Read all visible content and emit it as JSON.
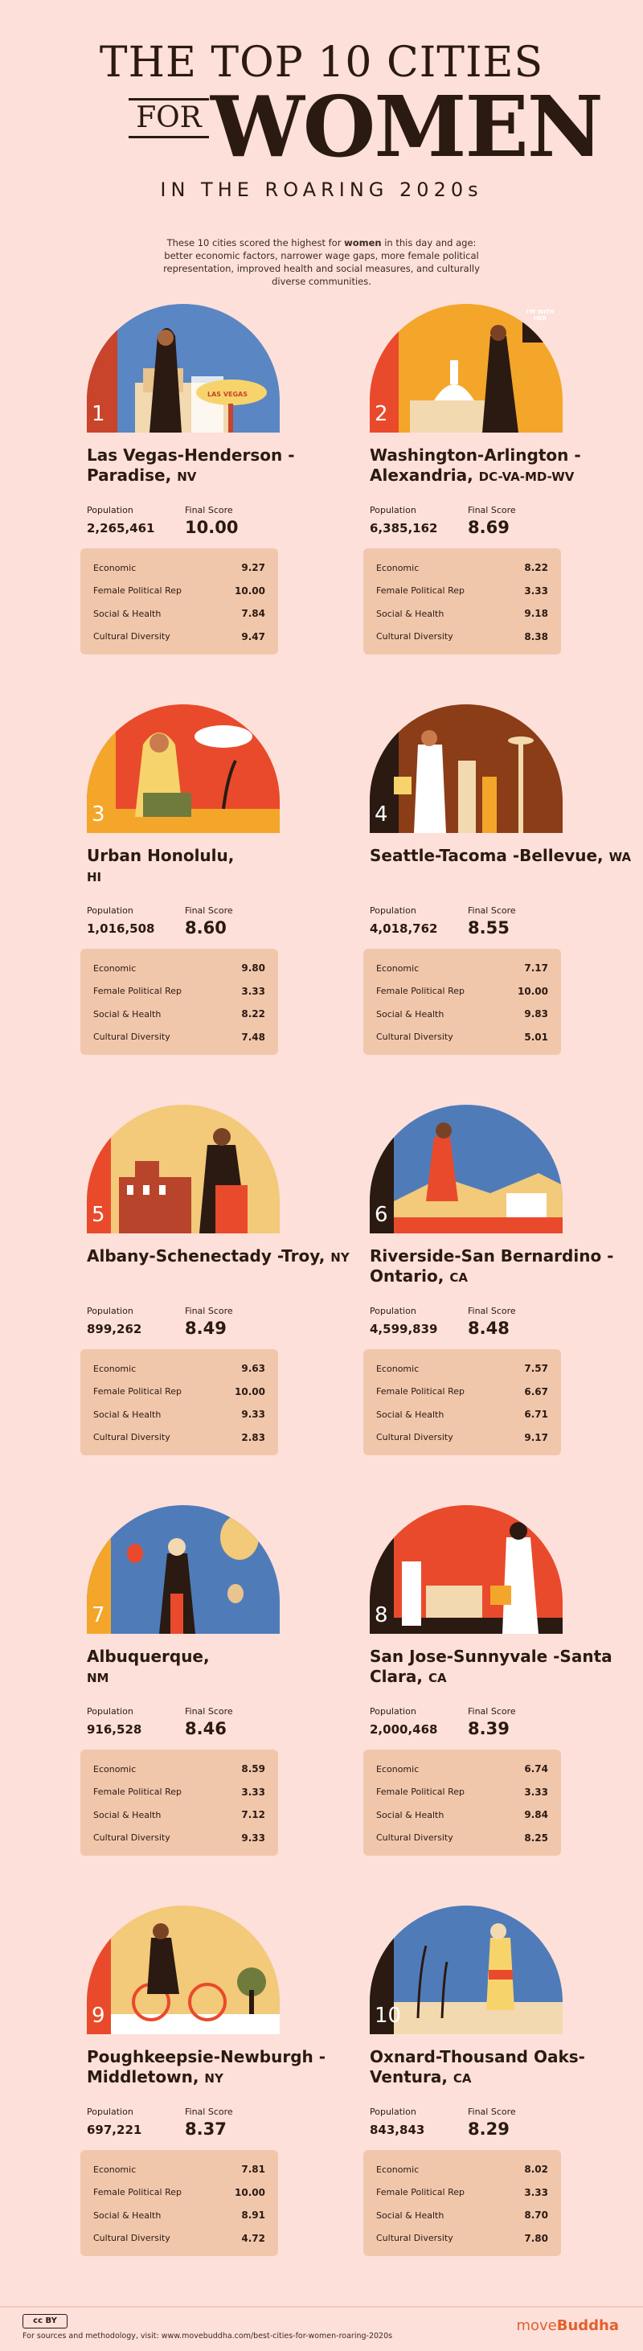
{
  "header": {
    "title_top": "THE TOP 10 CITIES",
    "title_for": "FOR",
    "title_women": "WOMEN",
    "subtitle": "IN THE ROARING 2020s",
    "intro_pre": "These 10 cities scored the highest for ",
    "intro_bold": "women",
    "intro_post": " in this day and age: better economic factors, narrower wage gaps, more female political representation, improved health and social measures, and culturally diverse communities."
  },
  "labels": {
    "population": "Population",
    "final_score": "Final Score",
    "economic": "Economic",
    "political": "Female Political Rep",
    "social": "Social & Health",
    "cultural": "Cultural Diversity"
  },
  "cities": [
    {
      "rank": "1",
      "name": "Las Vegas-Henderson -Paradise,",
      "state": "NV",
      "population": "2,265,461",
      "score": "10.00",
      "economic": "9.27",
      "political": "10.00",
      "social": "7.84",
      "cultural": "9.47",
      "sign_text": "LAS VEGAS"
    },
    {
      "rank": "2",
      "name": "Washington-Arlington -Alexandria,",
      "state": "DC-VA-MD-WV",
      "population": "6,385,162",
      "score": "8.69",
      "economic": "8.22",
      "political": "3.33",
      "social": "9.18",
      "cultural": "8.38",
      "sign_text": "I'M WITH HER"
    },
    {
      "rank": "3",
      "name": "Urban Honolulu,",
      "state": "HI",
      "population": "1,016,508",
      "score": "8.60",
      "economic": "9.80",
      "political": "3.33",
      "social": "8.22",
      "cultural": "7.48"
    },
    {
      "rank": "4",
      "name": "Seattle-Tacoma -Bellevue,",
      "state": "WA",
      "population": "4,018,762",
      "score": "8.55",
      "economic": "7.17",
      "political": "10.00",
      "social": "9.83",
      "cultural": "5.01"
    },
    {
      "rank": "5",
      "name": "Albany-Schenectady -Troy,",
      "state": "NY",
      "population": "899,262",
      "score": "8.49",
      "economic": "9.63",
      "political": "10.00",
      "social": "9.33",
      "cultural": "2.83"
    },
    {
      "rank": "6",
      "name": "Riverside-San Bernardino -Ontario,",
      "state": "CA",
      "population": "4,599,839",
      "score": "8.48",
      "economic": "7.57",
      "political": "6.67",
      "social": "6.71",
      "cultural": "9.17"
    },
    {
      "rank": "7",
      "name": "Albuquerque,",
      "state": "NM",
      "population": "916,528",
      "score": "8.46",
      "economic": "8.59",
      "political": "3.33",
      "social": "7.12",
      "cultural": "9.33"
    },
    {
      "rank": "8",
      "name": "San Jose-Sunnyvale -Santa Clara,",
      "state": "CA",
      "population": "2,000,468",
      "score": "8.39",
      "economic": "6.74",
      "political": "3.33",
      "social": "9.84",
      "cultural": "8.25"
    },
    {
      "rank": "9",
      "name": "Poughkeepsie-Newburgh -Middletown,",
      "state": "NY",
      "population": "697,221",
      "score": "8.37",
      "economic": "7.81",
      "political": "10.00",
      "social": "8.91",
      "cultural": "4.72"
    },
    {
      "rank": "10",
      "name": "Oxnard-Thousand Oaks-Ventura,",
      "state": "CA",
      "population": "843,843",
      "score": "8.29",
      "economic": "8.02",
      "political": "3.33",
      "social": "8.70",
      "cultural": "7.80"
    }
  ],
  "footer": {
    "license": "cc BY",
    "note": "For sources and methodology, visit: www.movebuddha.com/best-cities-for-women-roaring-2020s",
    "brand_a": "move",
    "brand_b": "Buddha"
  },
  "colors": {
    "background": "#fde0da",
    "panel": "#f1c7ac",
    "text": "#2a1a12",
    "brand": "#e2602e"
  }
}
